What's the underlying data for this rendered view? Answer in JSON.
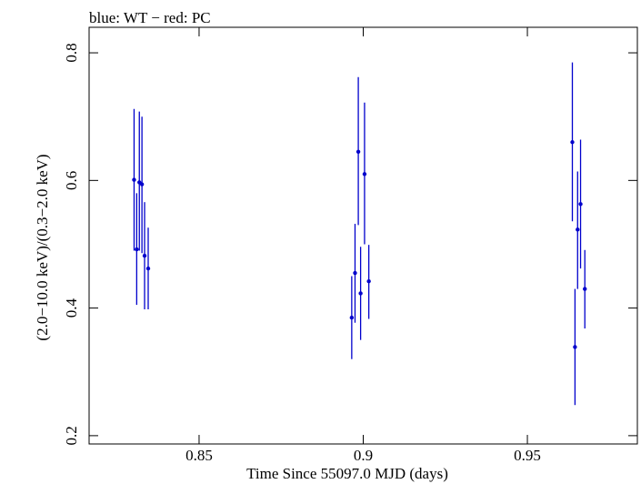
{
  "chart_data": {
    "type": "scatter",
    "title": "blue: WT − red: PC",
    "xlabel": "Time Since 55097.0 MJD (days)",
    "ylabel": "(2.0−10.0 keV)/(0.3−2.0 keV)",
    "xlim": [
      0.8165,
      0.9835
    ],
    "ylim": [
      0.187,
      0.84
    ],
    "x_ticks": [
      0.85,
      0.9,
      0.95
    ],
    "x_tick_labels": [
      "0.85",
      "0.9",
      "0.95"
    ],
    "y_ticks": [
      0.2,
      0.4,
      0.6,
      0.8
    ],
    "y_tick_labels": [
      "0.2",
      "0.4",
      "0.6",
      "0.8"
    ],
    "grid": false,
    "series": [
      {
        "name": "WT",
        "color": "#0000cc",
        "points": [
          {
            "x": 0.8302,
            "y": 0.601,
            "ylo": 0.49,
            "yhi": 0.712
          },
          {
            "x": 0.831,
            "y": 0.492,
            "ylo": 0.405,
            "yhi": 0.58
          },
          {
            "x": 0.8318,
            "y": 0.597,
            "ylo": 0.49,
            "yhi": 0.708
          },
          {
            "x": 0.8326,
            "y": 0.594,
            "ylo": 0.486,
            "yhi": 0.7
          },
          {
            "x": 0.8334,
            "y": 0.482,
            "ylo": 0.398,
            "yhi": 0.566
          },
          {
            "x": 0.8345,
            "y": 0.462,
            "ylo": 0.398,
            "yhi": 0.526
          },
          {
            "x": 0.8965,
            "y": 0.385,
            "ylo": 0.32,
            "yhi": 0.45
          },
          {
            "x": 0.8975,
            "y": 0.455,
            "ylo": 0.377,
            "yhi": 0.532
          },
          {
            "x": 0.8985,
            "y": 0.645,
            "ylo": 0.53,
            "yhi": 0.762
          },
          {
            "x": 0.8992,
            "y": 0.423,
            "ylo": 0.35,
            "yhi": 0.496
          },
          {
            "x": 0.9004,
            "y": 0.61,
            "ylo": 0.5,
            "yhi": 0.722
          },
          {
            "x": 0.9017,
            "y": 0.442,
            "ylo": 0.383,
            "yhi": 0.499
          },
          {
            "x": 0.9637,
            "y": 0.66,
            "ylo": 0.536,
            "yhi": 0.785
          },
          {
            "x": 0.9645,
            "y": 0.339,
            "ylo": 0.248,
            "yhi": 0.43
          },
          {
            "x": 0.9653,
            "y": 0.523,
            "ylo": 0.43,
            "yhi": 0.614
          },
          {
            "x": 0.9662,
            "y": 0.563,
            "ylo": 0.462,
            "yhi": 0.664
          },
          {
            "x": 0.9675,
            "y": 0.43,
            "ylo": 0.368,
            "yhi": 0.491
          }
        ]
      }
    ]
  }
}
